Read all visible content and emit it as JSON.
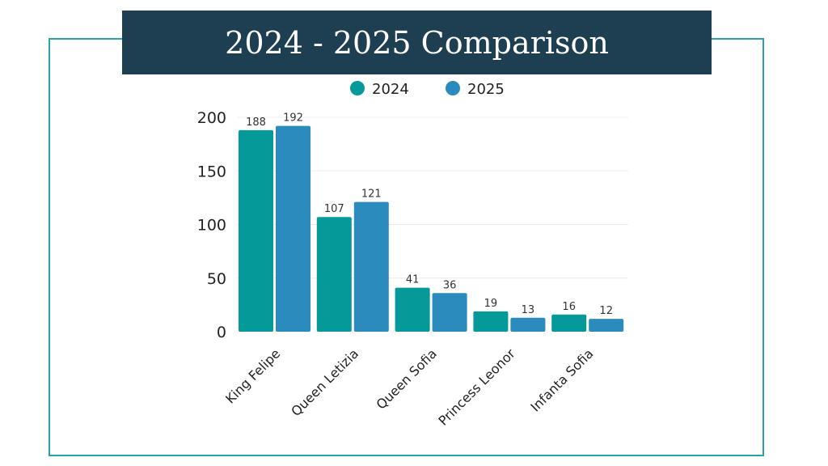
{
  "title": "2024 - 2025 Comparison",
  "chart_data": {
    "type": "bar",
    "title": "2024 - 2025 Comparison",
    "categories": [
      "King Felipe",
      "Queen Letizia",
      "Queen Sofia",
      "Princess Leonor",
      "Infanta Sofia"
    ],
    "series": [
      {
        "name": "2024",
        "color": "#05999a",
        "values": [
          188,
          107,
          41,
          19,
          16
        ]
      },
      {
        "name": "2025",
        "color": "#2b8bbd",
        "values": [
          192,
          121,
          36,
          13,
          12
        ]
      }
    ],
    "yticks": [
      0,
      50,
      100,
      150,
      200
    ],
    "ylim": [
      0,
      200
    ],
    "grid": true,
    "legend": "top-center",
    "xlabel": "",
    "ylabel": ""
  }
}
